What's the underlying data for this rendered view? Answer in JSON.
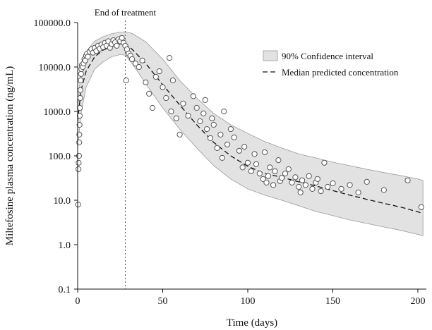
{
  "chart_data": {
    "type": "scatter",
    "xlabel": "Time (days)",
    "ylabel": "Miltefosine plasma concentration (ng/mL)",
    "xlim": [
      0,
      205
    ],
    "ylim": [
      0.1,
      100000
    ],
    "yscale": "log",
    "x_ticks": [
      0,
      50,
      100,
      150,
      200
    ],
    "x_tick_labels": [
      "0",
      "50",
      "100",
      "150",
      "200"
    ],
    "y_ticks": [
      0.1,
      1,
      10,
      100,
      1000,
      10000,
      100000
    ],
    "y_tick_labels": [
      "0.1",
      "1.0",
      "10.0",
      "100.0",
      "1000.0",
      "10000.0",
      "100000.0"
    ],
    "grid": false,
    "legend_position": "top-right",
    "legend": {
      "ci_label": "90% Confidence interval",
      "median_label": "Median predicted concentration"
    },
    "annotation": {
      "label": "End of treatment",
      "x": 28
    },
    "colors": {
      "ci_fill": "#e2e2e2",
      "ci_edge": "#9a9a9a",
      "median_line": "#111111",
      "point_fill": "#ffffff",
      "point_edge": "#555555"
    },
    "series": [
      {
        "type": "area",
        "role": "confidence_band",
        "x": [
          0,
          2,
          5,
          10,
          15,
          20,
          25,
          28,
          32,
          40,
          50,
          60,
          70,
          80,
          90,
          100,
          110,
          120,
          130,
          140,
          150,
          160,
          170,
          180,
          190,
          200,
          203
        ],
        "lower": [
          150,
          900,
          3500,
          9000,
          13000,
          17000,
          19000,
          18500,
          12000,
          4200,
          1200,
          400,
          150,
          60,
          30,
          18,
          13,
          10,
          7.5,
          5.6,
          4.5,
          3.6,
          3.0,
          2.5,
          2.1,
          1.7,
          1.6
        ],
        "upper": [
          1200,
          9000,
          22000,
          38000,
          48000,
          56000,
          61000,
          62000,
          57000,
          37000,
          15000,
          5000,
          2000,
          900,
          500,
          320,
          210,
          150,
          110,
          90,
          72,
          60,
          50,
          42,
          36,
          30,
          28
        ]
      },
      {
        "type": "line",
        "role": "median",
        "x": [
          0,
          2,
          5,
          10,
          15,
          20,
          25,
          28,
          32,
          40,
          50,
          60,
          70,
          80,
          90,
          100,
          110,
          120,
          130,
          140,
          150,
          160,
          170,
          180,
          190,
          200,
          203
        ],
        "y": [
          600,
          3000,
          8000,
          17000,
          24000,
          29000,
          33000,
          33500,
          25000,
          12000,
          4000,
          1400,
          500,
          200,
          100,
          58,
          40,
          33,
          26,
          21,
          16.5,
          13,
          10.5,
          8.5,
          7,
          5.5,
          5
        ]
      },
      {
        "type": "scatter",
        "role": "observed",
        "points": [
          [
            0.3,
            8
          ],
          [
            0.5,
            50
          ],
          [
            0.6,
            70
          ],
          [
            0.8,
            100
          ],
          [
            0.9,
            200
          ],
          [
            1,
            300
          ],
          [
            1.1,
            500
          ],
          [
            1.2,
            800
          ],
          [
            1.3,
            1200
          ],
          [
            1.5,
            2000
          ],
          [
            1.6,
            3000
          ],
          [
            1.8,
            5000
          ],
          [
            2,
            7000
          ],
          [
            2.2,
            9000
          ],
          [
            2.5,
            11000
          ],
          [
            3,
            10000
          ],
          [
            3.5,
            12000
          ],
          [
            4,
            15000
          ],
          [
            4.5,
            14000
          ],
          [
            5,
            18000
          ],
          [
            5.5,
            20000
          ],
          [
            6,
            17000
          ],
          [
            7,
            22000
          ],
          [
            8,
            25000
          ],
          [
            9,
            21000
          ],
          [
            10,
            27000
          ],
          [
            11,
            23000
          ],
          [
            12,
            30000
          ],
          [
            13,
            26000
          ],
          [
            14,
            32000
          ],
          [
            15,
            28000
          ],
          [
            16,
            35000
          ],
          [
            17,
            30000
          ],
          [
            18,
            38000
          ],
          [
            19,
            27000
          ],
          [
            20,
            33000
          ],
          [
            21,
            40000
          ],
          [
            22,
            36000
          ],
          [
            23,
            30000
          ],
          [
            24,
            42000
          ],
          [
            25,
            38000
          ],
          [
            26,
            45000
          ],
          [
            27,
            35000
          ],
          [
            28,
            30000
          ],
          [
            28.5,
            5000
          ],
          [
            29,
            25000
          ],
          [
            30,
            20000
          ],
          [
            31,
            18000
          ],
          [
            32,
            15000
          ],
          [
            34,
            12000
          ],
          [
            36,
            10000
          ],
          [
            38,
            14000
          ],
          [
            40,
            4500
          ],
          [
            42,
            2500
          ],
          [
            44,
            1200
          ],
          [
            46,
            6000
          ],
          [
            48,
            8000
          ],
          [
            50,
            3500
          ],
          [
            52,
            2000
          ],
          [
            54,
            16000
          ],
          [
            55,
            1000
          ],
          [
            56,
            5000
          ],
          [
            58,
            700
          ],
          [
            60,
            300
          ],
          [
            62,
            1500
          ],
          [
            65,
            800
          ],
          [
            68,
            2200
          ],
          [
            70,
            1200
          ],
          [
            72,
            600
          ],
          [
            74,
            900
          ],
          [
            75,
            1800
          ],
          [
            76,
            400
          ],
          [
            78,
            250
          ],
          [
            79,
            700
          ],
          [
            80,
            500
          ],
          [
            82,
            150
          ],
          [
            84,
            300
          ],
          [
            85,
            90
          ],
          [
            86,
            1000
          ],
          [
            88,
            180
          ],
          [
            90,
            400
          ],
          [
            92,
            260
          ],
          [
            95,
            130
          ],
          [
            97,
            55
          ],
          [
            98,
            160
          ],
          [
            100,
            70
          ],
          [
            102,
            45
          ],
          [
            104,
            110
          ],
          [
            105,
            65
          ],
          [
            107,
            40
          ],
          [
            109,
            30
          ],
          [
            110,
            120
          ],
          [
            111,
            25
          ],
          [
            112,
            35
          ],
          [
            113,
            55
          ],
          [
            115,
            22
          ],
          [
            116,
            45
          ],
          [
            118,
            80
          ],
          [
            119,
            27
          ],
          [
            120,
            32
          ],
          [
            122,
            40
          ],
          [
            124,
            50
          ],
          [
            126,
            25
          ],
          [
            128,
            33
          ],
          [
            130,
            20
          ],
          [
            131,
            15
          ],
          [
            132,
            28
          ],
          [
            134,
            22
          ],
          [
            136,
            35
          ],
          [
            138,
            18
          ],
          [
            140,
            25
          ],
          [
            141,
            30
          ],
          [
            143,
            16
          ],
          [
            145,
            70
          ],
          [
            147,
            20
          ],
          [
            150,
            24
          ],
          [
            155,
            18
          ],
          [
            160,
            22
          ],
          [
            165,
            15
          ],
          [
            170,
            26
          ],
          [
            180,
            17
          ],
          [
            194,
            28
          ],
          [
            202,
            7
          ]
        ]
      }
    ]
  }
}
